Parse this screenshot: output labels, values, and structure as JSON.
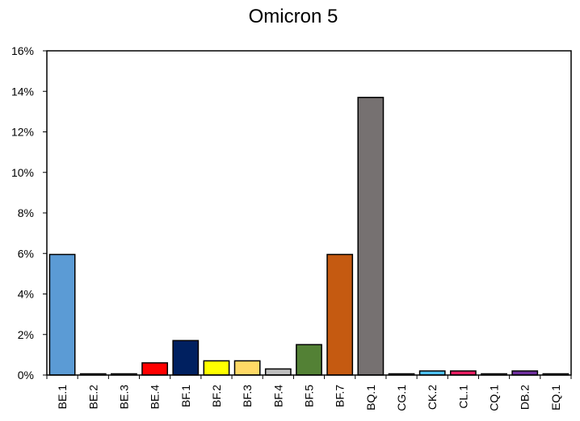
{
  "chart_data": {
    "type": "bar",
    "title": "Omicron 5",
    "xlabel": "",
    "ylabel": "",
    "ylim": [
      0,
      16
    ],
    "y_ticks": [
      "0%",
      "2%",
      "4%",
      "6%",
      "8%",
      "10%",
      "12%",
      "14%",
      "16%"
    ],
    "y_tick_values": [
      0,
      2,
      4,
      6,
      8,
      10,
      12,
      14,
      16
    ],
    "grid": false,
    "categories": [
      "BE.1",
      "BE.2",
      "BE.3",
      "BE.4",
      "BF.1",
      "BF.2",
      "BF.3",
      "BF.4",
      "BF.5",
      "BF.7",
      "BQ.1",
      "CG.1",
      "CK.2",
      "CL.1",
      "CQ.1",
      "DB.2",
      "EQ.1"
    ],
    "values": [
      5.95,
      0.05,
      0.05,
      0.6,
      1.7,
      0.7,
      0.7,
      0.3,
      1.5,
      5.95,
      13.7,
      0.05,
      0.2,
      0.2,
      0.05,
      0.2,
      0.05
    ],
    "colors": [
      "#5B9BD5",
      "#000000",
      "#000000",
      "#FF0000",
      "#002060",
      "#FFFF00",
      "#FFD966",
      "#BFBFBF",
      "#538135",
      "#C55A11",
      "#767171",
      "#000000",
      "#4FC3F7",
      "#E91E63",
      "#000000",
      "#7030A0",
      "#000000"
    ]
  }
}
